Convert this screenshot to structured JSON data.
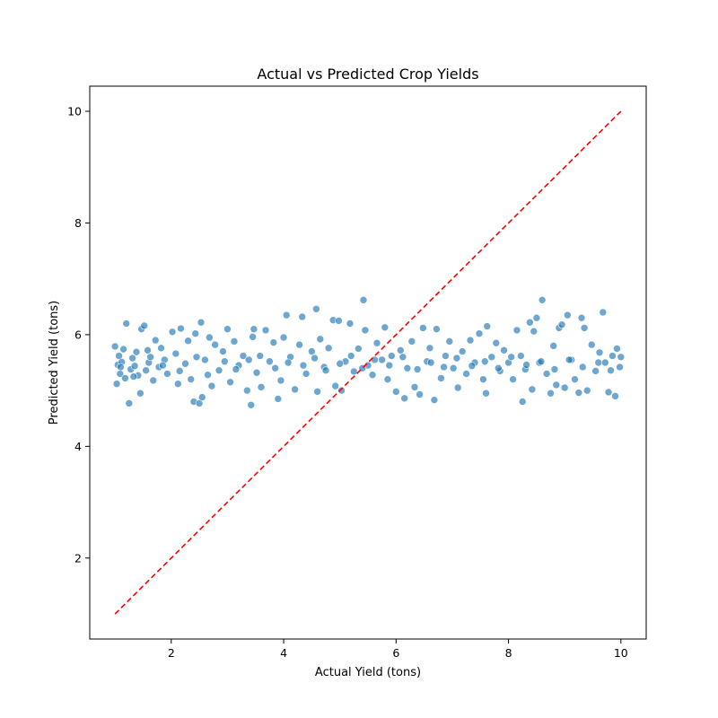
{
  "chart_data": {
    "type": "scatter",
    "title": "Actual vs Predicted Crop Yields",
    "xlabel": "Actual Yield (tons)",
    "ylabel": "Predicted Yield (tons)",
    "xlim": [
      0.55,
      10.45
    ],
    "ylim": [
      0.55,
      10.45
    ],
    "xticks": [
      2,
      4,
      6,
      8,
      10
    ],
    "yticks": [
      2,
      4,
      6,
      8,
      10
    ],
    "grid": false,
    "legend": "none",
    "series": [
      {
        "marker_color": "#1f77b4",
        "points": [
          [
            1.0,
            5.79
          ],
          [
            1.03,
            5.12
          ],
          [
            1.05,
            5.46
          ],
          [
            1.07,
            5.62
          ],
          [
            1.09,
            5.3
          ],
          [
            1.12,
            5.51
          ],
          [
            1.15,
            5.74
          ],
          [
            1.18,
            5.22
          ],
          [
            1.2,
            6.2
          ],
          [
            1.25,
            4.77
          ],
          [
            1.28,
            5.38
          ],
          [
            1.31,
            5.58
          ],
          [
            1.35,
            5.44
          ],
          [
            1.38,
            5.69
          ],
          [
            1.41,
            5.27
          ],
          [
            1.45,
            4.95
          ],
          [
            1.47,
            6.1
          ],
          [
            1.52,
            6.16
          ],
          [
            1.55,
            5.36
          ],
          [
            1.6,
            5.5
          ],
          [
            1.63,
            5.6
          ],
          [
            1.68,
            5.18
          ],
          [
            1.72,
            5.9
          ],
          [
            1.78,
            5.42
          ],
          [
            1.82,
            5.76
          ],
          [
            1.88,
            5.55
          ],
          [
            1.93,
            5.3
          ],
          [
            2.02,
            6.05
          ],
          [
            2.08,
            5.66
          ],
          [
            2.12,
            5.12
          ],
          [
            2.17,
            6.11
          ],
          [
            2.25,
            5.48
          ],
          [
            2.3,
            5.89
          ],
          [
            2.35,
            5.2
          ],
          [
            2.4,
            4.8
          ],
          [
            2.43,
            6.02
          ],
          [
            2.5,
            4.77
          ],
          [
            2.53,
            6.22
          ],
          [
            2.55,
            4.88
          ],
          [
            2.6,
            5.55
          ],
          [
            2.68,
            5.95
          ],
          [
            2.72,
            5.08
          ],
          [
            2.78,
            5.82
          ],
          [
            2.85,
            5.36
          ],
          [
            2.92,
            5.7
          ],
          [
            3.0,
            6.1
          ],
          [
            3.05,
            5.15
          ],
          [
            3.12,
            5.88
          ],
          [
            3.2,
            5.45
          ],
          [
            3.28,
            5.62
          ],
          [
            3.35,
            5.0
          ],
          [
            3.42,
            4.74
          ],
          [
            3.45,
            5.96
          ],
          [
            3.47,
            6.1
          ],
          [
            3.52,
            5.32
          ],
          [
            3.6,
            5.06
          ],
          [
            3.68,
            6.08
          ],
          [
            3.75,
            5.52
          ],
          [
            3.82,
            5.86
          ],
          [
            3.9,
            4.85
          ],
          [
            3.95,
            5.18
          ],
          [
            4.0,
            5.95
          ],
          [
            4.05,
            6.35
          ],
          [
            4.12,
            5.6
          ],
          [
            4.2,
            5.02
          ],
          [
            4.28,
            5.82
          ],
          [
            4.33,
            6.32
          ],
          [
            4.4,
            5.3
          ],
          [
            4.5,
            5.7
          ],
          [
            4.58,
            6.46
          ],
          [
            4.6,
            4.98
          ],
          [
            4.65,
            5.92
          ],
          [
            4.72,
            5.42
          ],
          [
            4.8,
            5.76
          ],
          [
            4.88,
            6.26
          ],
          [
            4.92,
            5.08
          ],
          [
            4.98,
            6.25
          ],
          [
            5.03,
            5.0
          ],
          [
            5.1,
            5.52
          ],
          [
            5.18,
            6.2
          ],
          [
            5.25,
            5.34
          ],
          [
            5.33,
            5.75
          ],
          [
            5.42,
            6.62
          ],
          [
            5.45,
            6.08
          ],
          [
            5.5,
            5.45
          ],
          [
            5.58,
            5.28
          ],
          [
            5.66,
            5.85
          ],
          [
            5.75,
            5.55
          ],
          [
            5.8,
            6.13
          ],
          [
            5.85,
            5.2
          ],
          [
            5.92,
            5.62
          ],
          [
            6.0,
            4.98
          ],
          [
            6.08,
            5.72
          ],
          [
            6.15,
            4.86
          ],
          [
            6.2,
            5.4
          ],
          [
            6.28,
            5.88
          ],
          [
            6.33,
            5.06
          ],
          [
            6.42,
            4.93
          ],
          [
            6.48,
            6.12
          ],
          [
            6.55,
            5.52
          ],
          [
            6.6,
            5.76
          ],
          [
            6.68,
            4.83
          ],
          [
            6.72,
            6.1
          ],
          [
            6.8,
            5.22
          ],
          [
            6.88,
            5.62
          ],
          [
            6.95,
            5.88
          ],
          [
            7.02,
            5.4
          ],
          [
            7.1,
            5.05
          ],
          [
            7.18,
            5.7
          ],
          [
            7.25,
            5.3
          ],
          [
            7.32,
            5.9
          ],
          [
            7.4,
            5.5
          ],
          [
            7.48,
            6.02
          ],
          [
            7.55,
            5.2
          ],
          [
            7.6,
            4.95
          ],
          [
            7.62,
            6.15
          ],
          [
            7.7,
            5.6
          ],
          [
            7.78,
            5.85
          ],
          [
            7.85,
            5.35
          ],
          [
            7.92,
            5.72
          ],
          [
            8.0,
            5.5
          ],
          [
            8.08,
            5.2
          ],
          [
            8.15,
            6.08
          ],
          [
            8.22,
            5.62
          ],
          [
            8.25,
            4.8
          ],
          [
            8.3,
            5.38
          ],
          [
            8.38,
            6.22
          ],
          [
            8.42,
            5.02
          ],
          [
            8.45,
            6.06
          ],
          [
            8.5,
            6.3
          ],
          [
            8.55,
            5.5
          ],
          [
            8.6,
            6.62
          ],
          [
            8.68,
            5.3
          ],
          [
            8.75,
            4.95
          ],
          [
            8.8,
            5.8
          ],
          [
            8.85,
            5.1
          ],
          [
            8.9,
            6.12
          ],
          [
            8.95,
            6.18
          ],
          [
            9.0,
            5.05
          ],
          [
            9.05,
            6.35
          ],
          [
            9.12,
            5.55
          ],
          [
            9.18,
            5.2
          ],
          [
            9.25,
            4.96
          ],
          [
            9.3,
            6.3
          ],
          [
            9.35,
            6.12
          ],
          [
            9.4,
            5.0
          ],
          [
            9.48,
            5.82
          ],
          [
            9.55,
            5.35
          ],
          [
            9.62,
            5.68
          ],
          [
            9.68,
            6.4
          ],
          [
            9.72,
            5.5
          ],
          [
            9.78,
            4.97
          ],
          [
            9.85,
            5.62
          ],
          [
            9.9,
            4.9
          ],
          [
            9.93,
            5.75
          ],
          [
            9.98,
            5.42
          ],
          [
            10.0,
            5.6
          ],
          [
            1.1,
            5.42
          ],
          [
            1.33,
            5.25
          ],
          [
            1.58,
            5.72
          ],
          [
            1.85,
            5.45
          ],
          [
            2.15,
            5.35
          ],
          [
            2.45,
            5.6
          ],
          [
            2.65,
            5.28
          ],
          [
            2.95,
            5.52
          ],
          [
            3.15,
            5.38
          ],
          [
            3.38,
            5.55
          ],
          [
            3.58,
            5.62
          ],
          [
            3.85,
            5.4
          ],
          [
            4.08,
            5.5
          ],
          [
            4.35,
            5.45
          ],
          [
            4.55,
            5.58
          ],
          [
            4.75,
            5.36
          ],
          [
            5.0,
            5.48
          ],
          [
            5.2,
            5.62
          ],
          [
            5.4,
            5.4
          ],
          [
            5.62,
            5.55
          ],
          [
            5.88,
            5.45
          ],
          [
            6.12,
            5.6
          ],
          [
            6.38,
            5.38
          ],
          [
            6.62,
            5.5
          ],
          [
            6.85,
            5.42
          ],
          [
            7.08,
            5.58
          ],
          [
            7.35,
            5.44
          ],
          [
            7.58,
            5.52
          ],
          [
            7.82,
            5.4
          ],
          [
            8.05,
            5.6
          ],
          [
            8.32,
            5.46
          ],
          [
            8.58,
            5.52
          ],
          [
            8.82,
            5.38
          ],
          [
            9.08,
            5.55
          ],
          [
            9.32,
            5.42
          ],
          [
            9.6,
            5.5
          ],
          [
            9.82,
            5.36
          ]
        ]
      }
    ],
    "reference_line": {
      "points": [
        [
          1.0,
          1.0
        ],
        [
          10.0,
          10.0
        ]
      ],
      "color": "#ff0000",
      "style": "dashed"
    }
  }
}
